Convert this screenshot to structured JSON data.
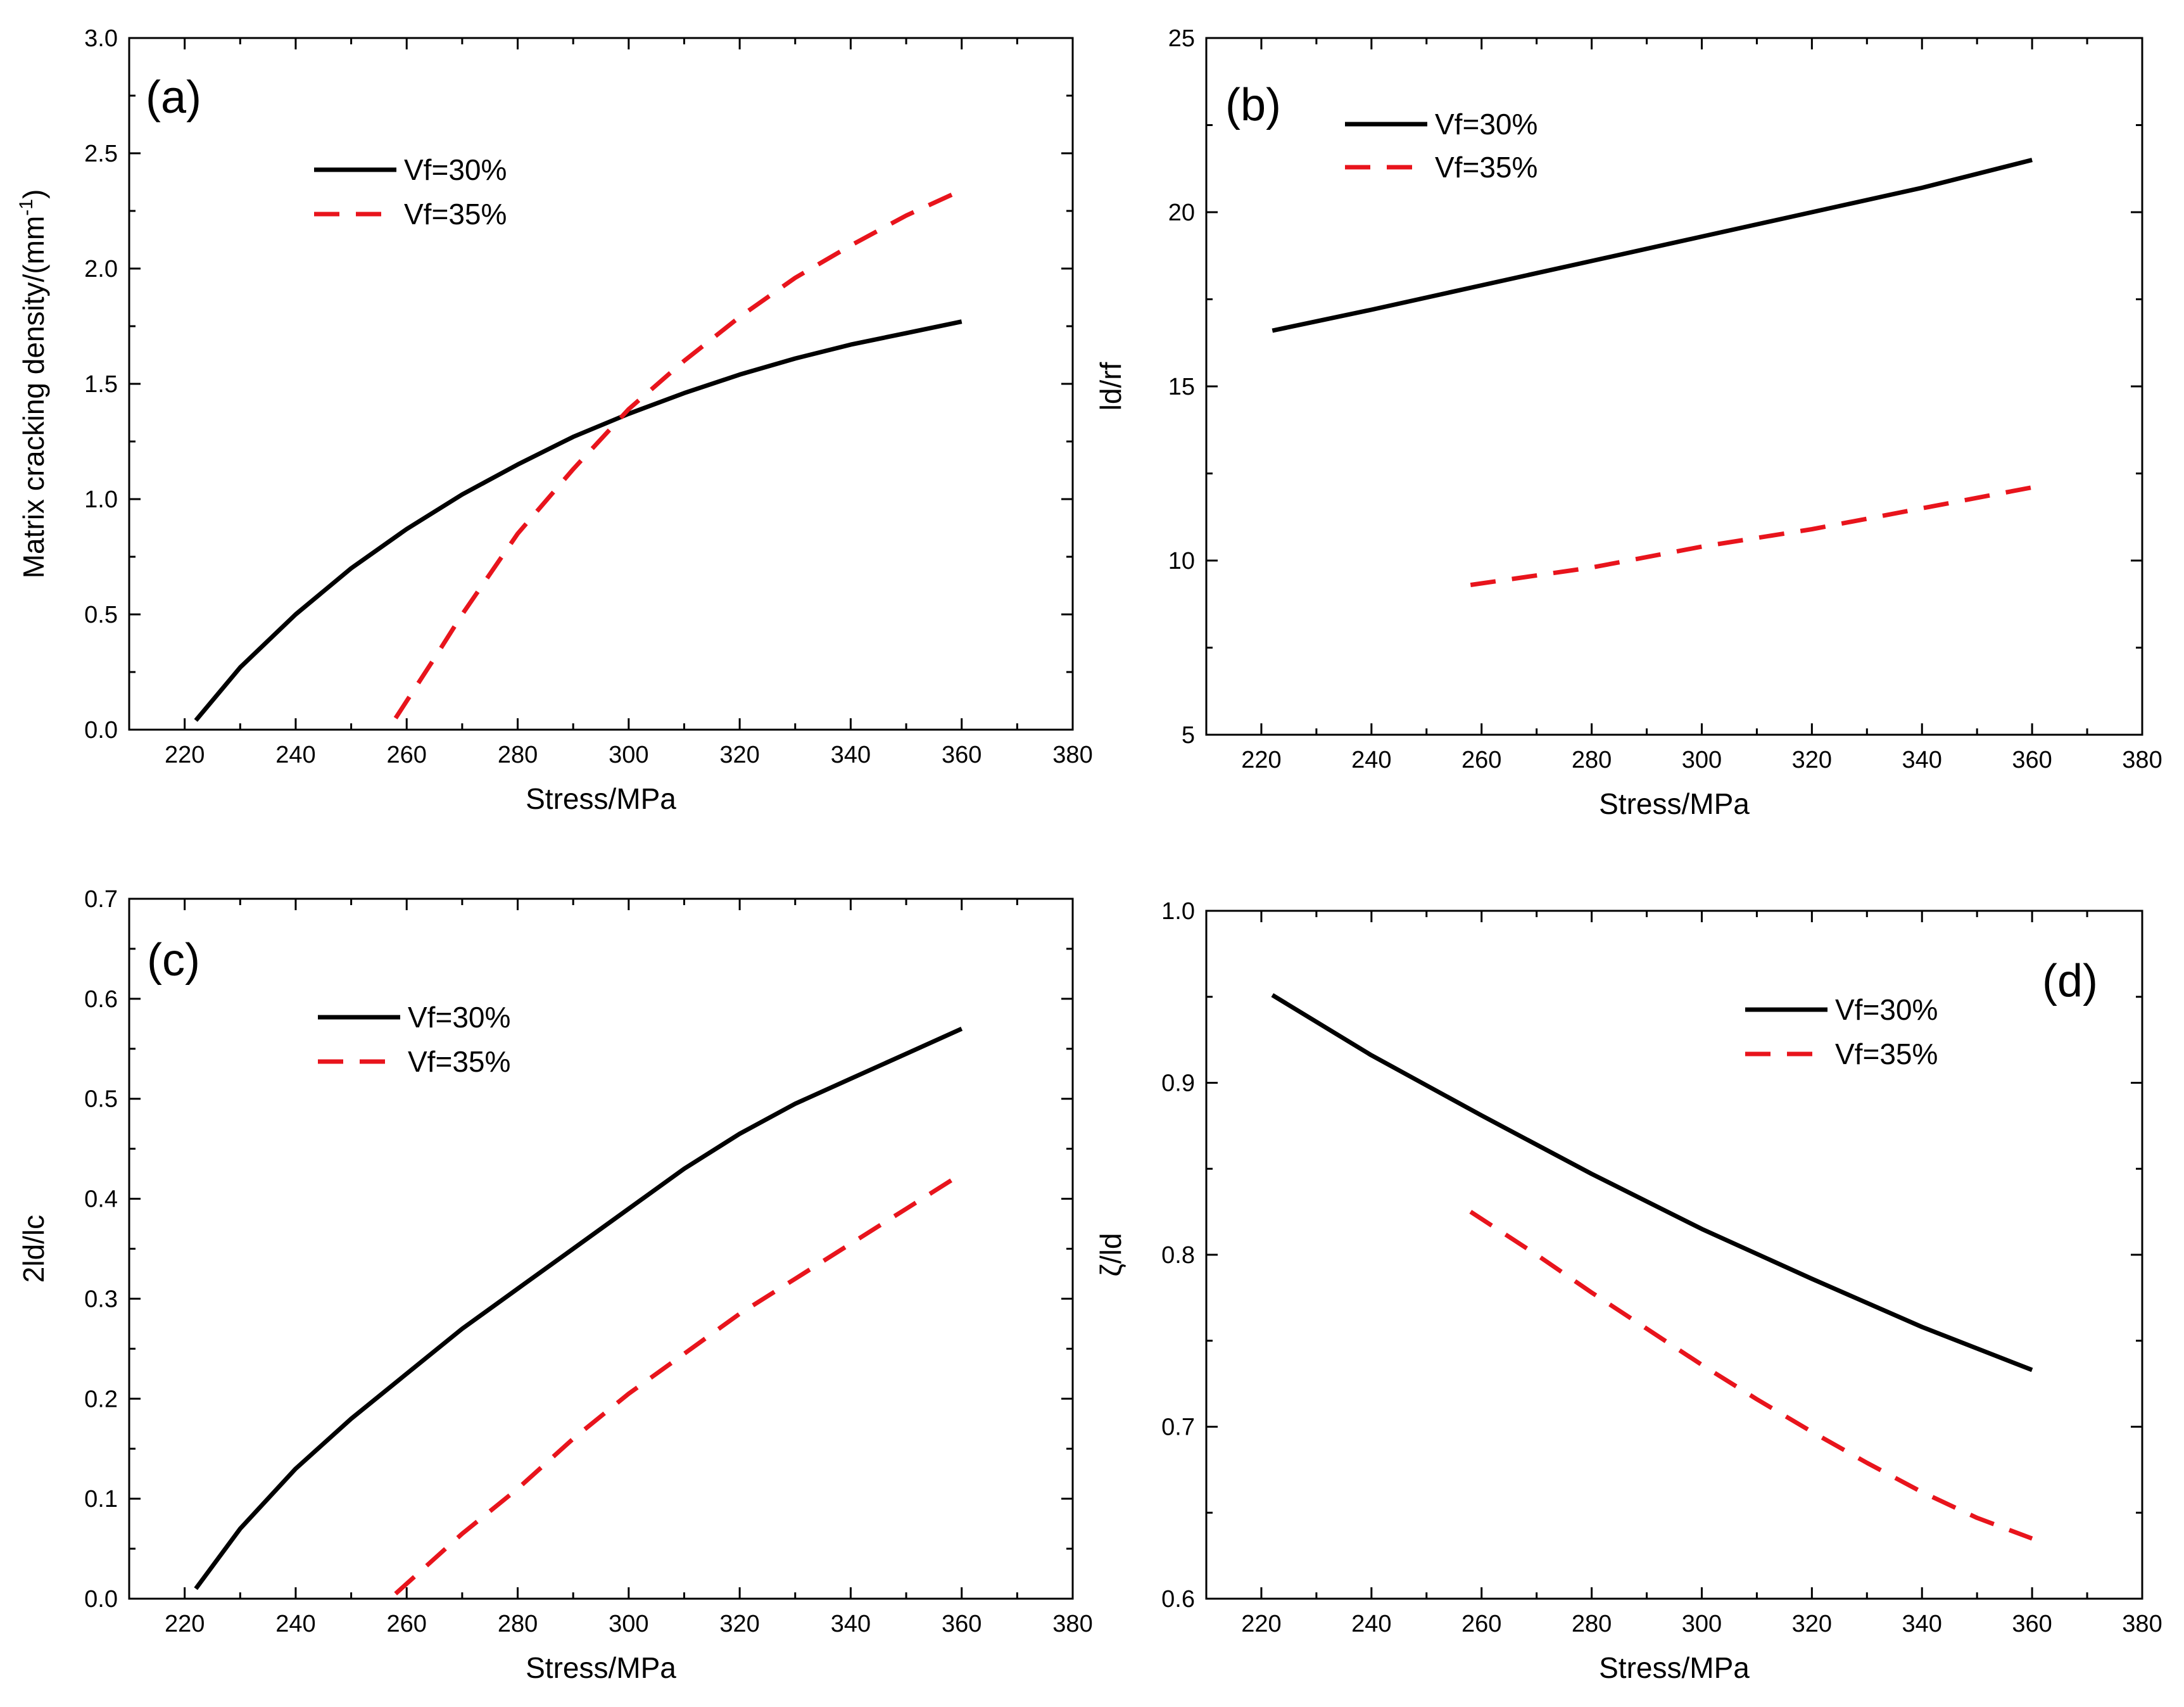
{
  "figure": {
    "colors": {
      "series_0": "#000000",
      "series_1": "#e8141c",
      "axis": "#000000",
      "background": "#ffffff"
    }
  },
  "chart_data": [
    {
      "type": "line",
      "panel_label": "(a)",
      "xlabel": "Stress/MPa",
      "ylabel": "Matrix cracking density/(mm",
      "ylabel_sup": "-1",
      "ylabel_tail": ")",
      "xlim": [
        210,
        380
      ],
      "ylim": [
        0,
        3.0
      ],
      "xticks": [
        220,
        240,
        260,
        280,
        300,
        320,
        340,
        360,
        380
      ],
      "yticks": [
        0.0,
        0.5,
        1.0,
        1.5,
        2.0,
        2.5,
        3.0
      ],
      "ytick_labels": [
        "0.0",
        "0.5",
        "1.0",
        "1.5",
        "2.0",
        "2.5",
        "3.0"
      ],
      "legend_position": "upper-left",
      "series": [
        {
          "name": "Vf=30%",
          "style": "solid",
          "x": [
            222,
            230,
            240,
            250,
            260,
            270,
            280,
            290,
            300,
            310,
            320,
            330,
            340,
            350,
            360
          ],
          "y": [
            0.04,
            0.27,
            0.5,
            0.7,
            0.87,
            1.02,
            1.15,
            1.27,
            1.37,
            1.46,
            1.54,
            1.61,
            1.67,
            1.72,
            1.77
          ]
        },
        {
          "name": "Vf=35%",
          "style": "dashed",
          "x": [
            258,
            265,
            270,
            280,
            290,
            300,
            310,
            320,
            330,
            340,
            350,
            360
          ],
          "y": [
            0.05,
            0.31,
            0.5,
            0.85,
            1.13,
            1.39,
            1.6,
            1.79,
            1.96,
            2.1,
            2.23,
            2.34
          ]
        }
      ]
    },
    {
      "type": "line",
      "panel_label": "(b)",
      "xlabel": "Stress/MPa",
      "ylabel": "ld/rf",
      "xlim": [
        210,
        380
      ],
      "ylim": [
        5,
        25
      ],
      "xticks": [
        220,
        240,
        260,
        280,
        300,
        320,
        340,
        360,
        380
      ],
      "yticks": [
        5,
        10,
        15,
        20,
        25
      ],
      "ytick_labels": [
        "5",
        "10",
        "15",
        "20",
        "25"
      ],
      "legend_position": "upper-left",
      "series": [
        {
          "name": "Vf=30%",
          "style": "solid",
          "x": [
            222,
            240,
            260,
            280,
            300,
            320,
            340,
            360
          ],
          "y": [
            16.6,
            17.2,
            17.9,
            18.6,
            19.3,
            20.0,
            20.7,
            21.5
          ]
        },
        {
          "name": "Vf=35%",
          "style": "dashed",
          "x": [
            258,
            280,
            300,
            320,
            340,
            360
          ],
          "y": [
            9.3,
            9.8,
            10.4,
            10.9,
            11.5,
            12.1
          ]
        }
      ]
    },
    {
      "type": "line",
      "panel_label": "(c)",
      "xlabel": "Stress/MPa",
      "ylabel": "2ld/lc",
      "xlim": [
        210,
        380
      ],
      "ylim": [
        0,
        0.7
      ],
      "xticks": [
        220,
        240,
        260,
        280,
        300,
        320,
        340,
        360,
        380
      ],
      "yticks": [
        0.0,
        0.1,
        0.2,
        0.3,
        0.4,
        0.5,
        0.6,
        0.7
      ],
      "ytick_labels": [
        "0.0",
        "0.1",
        "0.2",
        "0.3",
        "0.4",
        "0.5",
        "0.6",
        "0.7"
      ],
      "legend_position": "upper-left",
      "series": [
        {
          "name": "Vf=30%",
          "style": "solid",
          "x": [
            222,
            230,
            240,
            250,
            260,
            270,
            280,
            290,
            300,
            310,
            320,
            330,
            340,
            350,
            360
          ],
          "y": [
            0.01,
            0.07,
            0.13,
            0.18,
            0.225,
            0.27,
            0.31,
            0.35,
            0.39,
            0.43,
            0.465,
            0.495,
            0.52,
            0.545,
            0.57
          ]
        },
        {
          "name": "Vf=35%",
          "style": "dashed",
          "x": [
            258,
            270,
            280,
            290,
            300,
            310,
            320,
            330,
            340,
            350,
            360
          ],
          "y": [
            0.005,
            0.065,
            0.11,
            0.16,
            0.205,
            0.245,
            0.285,
            0.32,
            0.355,
            0.39,
            0.425
          ]
        }
      ]
    },
    {
      "type": "line",
      "panel_label": "(d)",
      "xlabel": "Stress/MPa",
      "ylabel": "ζ/ld",
      "xlim": [
        210,
        380
      ],
      "ylim": [
        0.6,
        1.0
      ],
      "xticks": [
        220,
        240,
        260,
        280,
        300,
        320,
        340,
        360,
        380
      ],
      "yticks": [
        0.6,
        0.7,
        0.8,
        0.9,
        1.0
      ],
      "ytick_labels": [
        "0.6",
        "0.7",
        "0.8",
        "0.9",
        "1.0"
      ],
      "legend_position": "upper-right",
      "series": [
        {
          "name": "Vf=30%",
          "style": "solid",
          "x": [
            222,
            240,
            260,
            280,
            300,
            320,
            340,
            360
          ],
          "y": [
            0.951,
            0.916,
            0.881,
            0.847,
            0.815,
            0.786,
            0.758,
            0.733
          ]
        },
        {
          "name": "Vf=35%",
          "style": "dashed",
          "x": [
            258,
            270,
            280,
            290,
            300,
            310,
            320,
            330,
            340,
            350,
            360
          ],
          "y": [
            0.825,
            0.8,
            0.778,
            0.757,
            0.736,
            0.716,
            0.697,
            0.679,
            0.662,
            0.647,
            0.635
          ]
        }
      ]
    }
  ]
}
